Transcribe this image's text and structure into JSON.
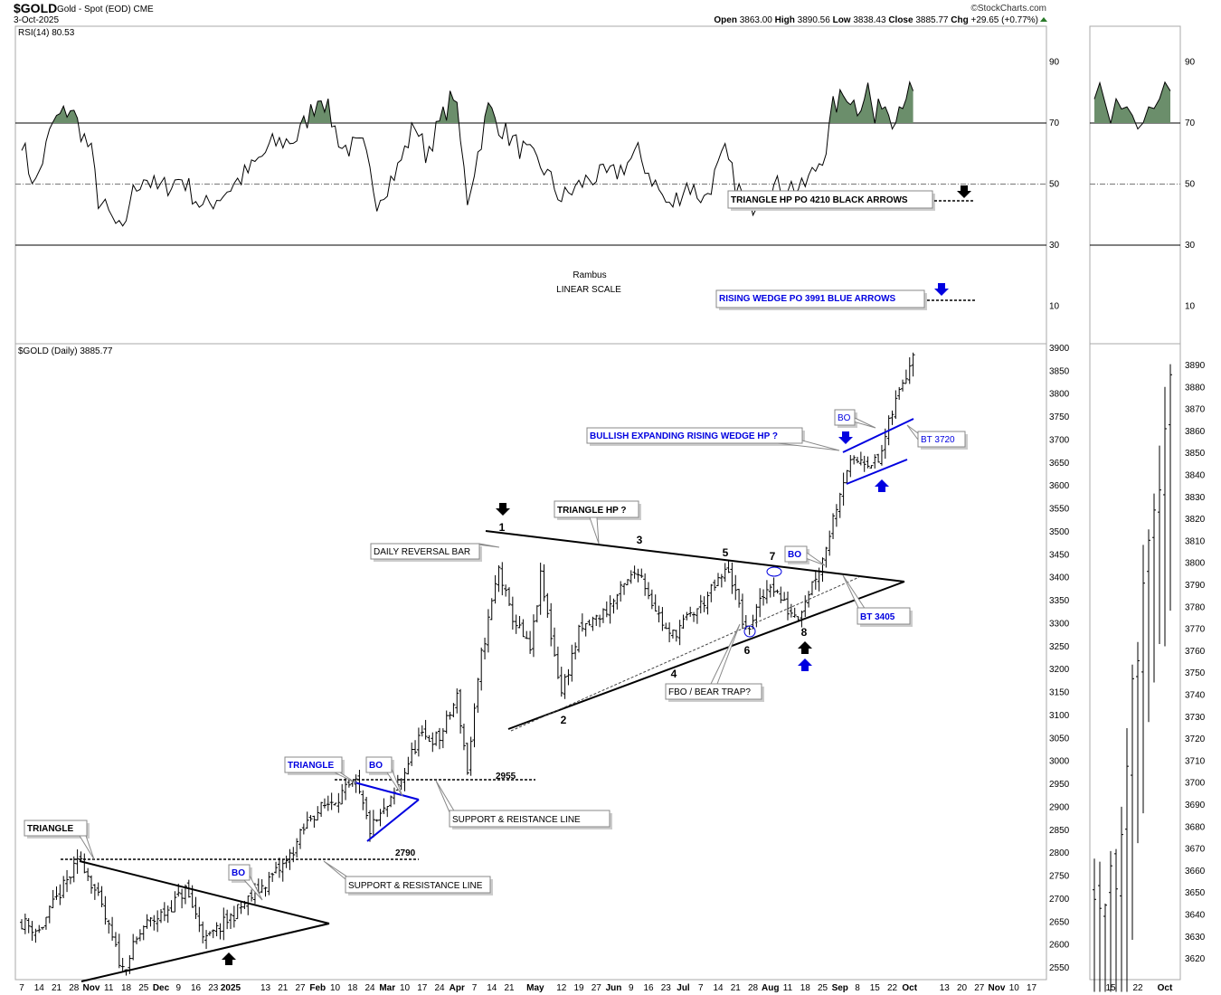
{
  "header": {
    "symbol": "$GOLD",
    "description": "Gold - Spot (EOD) CME",
    "date": "3-Oct-2025",
    "watermark": "©StockCharts.com",
    "open_label": "Open",
    "open": "3863.00",
    "high_label": "High",
    "high": "3890.56",
    "low_label": "Low",
    "low": "3838.43",
    "close_label": "Close",
    "close": "3885.77",
    "chg_label": "Chg",
    "chg": "+29.65 (+0.77%)"
  },
  "rsi_panel": {
    "legend": "RSI(14) 80.53",
    "fill_color": "#6b8e6b"
  },
  "price_panel": {
    "legend": "$GOLD (Daily) 3885.77"
  },
  "chart_data": {
    "type": "ohlc-bar",
    "title": "$GOLD Gold - Spot (EOD) CME",
    "x_unit": "trading days since 7-Oct-2024",
    "price_key_points": [
      [
        0,
        2650
      ],
      [
        5,
        2630
      ],
      [
        10,
        2700
      ],
      [
        17,
        2790
      ],
      [
        22,
        2700
      ],
      [
        29,
        2545
      ],
      [
        35,
        2640
      ],
      [
        41,
        2670
      ],
      [
        47,
        2720
      ],
      [
        53,
        2610
      ],
      [
        60,
        2660
      ],
      [
        68,
        2720
      ],
      [
        76,
        2780
      ],
      [
        83,
        2880
      ],
      [
        90,
        2920
      ],
      [
        96,
        2950
      ],
      [
        100,
        2850
      ],
      [
        106,
        2910
      ],
      [
        114,
        3050
      ],
      [
        120,
        3050
      ],
      [
        125,
        3140
      ],
      [
        128,
        2980
      ],
      [
        132,
        3230
      ],
      [
        137,
        3420
      ],
      [
        140,
        3330
      ],
      [
        146,
        3240
      ],
      [
        149,
        3400
      ],
      [
        155,
        3150
      ],
      [
        160,
        3280
      ],
      [
        168,
        3330
      ],
      [
        177,
        3420
      ],
      [
        181,
        3350
      ],
      [
        186,
        3270
      ],
      [
        195,
        3340
      ],
      [
        203,
        3420
      ],
      [
        208,
        3280
      ],
      [
        215,
        3390
      ],
      [
        220,
        3330
      ],
      [
        223,
        3320
      ],
      [
        230,
        3440
      ],
      [
        235,
        3590
      ],
      [
        237,
        3640
      ],
      [
        241,
        3660
      ],
      [
        246,
        3650
      ],
      [
        250,
        3760
      ],
      [
        253,
        3830
      ],
      [
        256,
        3885
      ]
    ],
    "rsi_key_points": [
      [
        0,
        65
      ],
      [
        2,
        55
      ],
      [
        4,
        50
      ],
      [
        9,
        70
      ],
      [
        14,
        75
      ],
      [
        20,
        60
      ],
      [
        22,
        45
      ],
      [
        25,
        40
      ],
      [
        29,
        33
      ],
      [
        31,
        45
      ],
      [
        35,
        53
      ],
      [
        39,
        48
      ],
      [
        46,
        52
      ],
      [
        52,
        42
      ],
      [
        59,
        48
      ],
      [
        66,
        55
      ],
      [
        72,
        63
      ],
      [
        79,
        65
      ],
      [
        86,
        80
      ],
      [
        92,
        62
      ],
      [
        98,
        62
      ],
      [
        102,
        45
      ],
      [
        108,
        55
      ],
      [
        113,
        70
      ],
      [
        116,
        60
      ],
      [
        121,
        72
      ],
      [
        124,
        80
      ],
      [
        125,
        73
      ],
      [
        128,
        45
      ],
      [
        134,
        75
      ],
      [
        138,
        68
      ],
      [
        142,
        63
      ],
      [
        150,
        55
      ],
      [
        155,
        45
      ],
      [
        163,
        52
      ],
      [
        170,
        53
      ],
      [
        177,
        60
      ],
      [
        183,
        48
      ],
      [
        186,
        42
      ],
      [
        191,
        50
      ],
      [
        196,
        45
      ],
      [
        202,
        60
      ],
      [
        205,
        50
      ],
      [
        209,
        42
      ],
      [
        213,
        48
      ],
      [
        220,
        50
      ],
      [
        224,
        48
      ],
      [
        228,
        55
      ],
      [
        231,
        62
      ],
      [
        233,
        75
      ],
      [
        237,
        80
      ],
      [
        240,
        75
      ],
      [
        243,
        82
      ],
      [
        245,
        70
      ],
      [
        247,
        78
      ],
      [
        250,
        72
      ],
      [
        254,
        80
      ],
      [
        256,
        80
      ]
    ],
    "price_axis": {
      "ticks": [
        3900,
        3850,
        3800,
        3750,
        3700,
        3650,
        3600,
        3550,
        3500,
        3450,
        3400,
        3350,
        3300,
        3250,
        3200,
        3150,
        3100,
        3050,
        3000,
        2950,
        2900,
        2850,
        2800,
        2750,
        2700,
        2650,
        2600,
        2550
      ],
      "range": [
        2520,
        3920
      ]
    },
    "rsi_axis": {
      "ticks": [
        90,
        70,
        50,
        30,
        10
      ],
      "range": [
        0,
        100
      ],
      "overbought": 70,
      "oversold": 30,
      "mid": 50
    },
    "zoom_axis": {
      "ticks": [
        3890,
        3880,
        3870,
        3860,
        3850,
        3840,
        3830,
        3820,
        3810,
        3800,
        3790,
        3780,
        3770,
        3760,
        3750,
        3740,
        3730,
        3720,
        3710,
        3700,
        3690,
        3680,
        3670,
        3660,
        3650,
        3640,
        3630,
        3620
      ]
    },
    "x_labels": [
      {
        "w": 0,
        "t": "7"
      },
      {
        "w": 1,
        "t": "14"
      },
      {
        "w": 2,
        "t": "21"
      },
      {
        "w": 3,
        "t": "28"
      },
      {
        "w": 4,
        "t": "Nov",
        "b": true
      },
      {
        "w": 5,
        "t": "11"
      },
      {
        "w": 6,
        "t": "18"
      },
      {
        "w": 7,
        "t": "25"
      },
      {
        "w": 8,
        "t": "Dec",
        "b": true
      },
      {
        "w": 9,
        "t": "9"
      },
      {
        "w": 10,
        "t": "16"
      },
      {
        "w": 11,
        "t": "23"
      },
      {
        "w": 12,
        "t": "2025",
        "b": true
      },
      {
        "w": 14,
        "t": "13"
      },
      {
        "w": 15,
        "t": "21"
      },
      {
        "w": 16,
        "t": "27"
      },
      {
        "w": 17,
        "t": "Feb",
        "b": true
      },
      {
        "w": 18,
        "t": "10"
      },
      {
        "w": 19,
        "t": "18"
      },
      {
        "w": 20,
        "t": "24"
      },
      {
        "w": 21,
        "t": "Mar",
        "b": true
      },
      {
        "w": 22,
        "t": "10"
      },
      {
        "w": 23,
        "t": "17"
      },
      {
        "w": 24,
        "t": "24"
      },
      {
        "w": 25,
        "t": "Apr",
        "b": true
      },
      {
        "w": 26,
        "t": "7"
      },
      {
        "w": 27,
        "t": "14"
      },
      {
        "w": 28,
        "t": "21"
      },
      {
        "w": 29.5,
        "t": "May",
        "b": true
      },
      {
        "w": 31,
        "t": "12"
      },
      {
        "w": 32,
        "t": "19"
      },
      {
        "w": 33,
        "t": "27"
      },
      {
        "w": 34,
        "t": "Jun",
        "b": true
      },
      {
        "w": 35,
        "t": "9"
      },
      {
        "w": 36,
        "t": "16"
      },
      {
        "w": 37,
        "t": "23"
      },
      {
        "w": 38,
        "t": "Jul",
        "b": true
      },
      {
        "w": 39,
        "t": "7"
      },
      {
        "w": 40,
        "t": "14"
      },
      {
        "w": 41,
        "t": "21"
      },
      {
        "w": 42,
        "t": "28"
      },
      {
        "w": 43,
        "t": "Aug",
        "b": true
      },
      {
        "w": 44,
        "t": "11"
      },
      {
        "w": 45,
        "t": "18"
      },
      {
        "w": 46,
        "t": "25"
      },
      {
        "w": 47,
        "t": "Sep",
        "b": true
      },
      {
        "w": 48,
        "t": "8"
      },
      {
        "w": 49,
        "t": "15"
      },
      {
        "w": 50,
        "t": "22"
      },
      {
        "w": 51,
        "t": "Oct",
        "b": true
      },
      {
        "w": 53,
        "t": "13"
      },
      {
        "w": 54,
        "t": "20"
      },
      {
        "w": 55,
        "t": "27"
      },
      {
        "w": 56,
        "t": "Nov",
        "b": true
      },
      {
        "w": 57,
        "t": "10"
      },
      {
        "w": 58,
        "t": "17"
      }
    ],
    "zoom_x_labels": [
      {
        "d": 245,
        "t": "15"
      },
      {
        "d": 250,
        "t": "22"
      },
      {
        "d": 255,
        "t": "Oct",
        "b": true
      }
    ]
  },
  "annotations": {
    "rsi_triangle_po": "TRIANGLE HP PO 4210 BLACK ARROWS",
    "rsi_wedge_po": "RISING WEDGE PO 3991 BLUE ARROWS",
    "author": "Rambus",
    "scale": "LINEAR SCALE",
    "daily_reversal": "DAILY REVERSAL BAR",
    "triangle_hp": "TRIANGLE HP ?",
    "wedge_hp": "BULLISH EXPANDING RISING WEDGE HP ?",
    "bo_wedge": "BO",
    "bt_3720": "BT 3720",
    "bo_triangle": "BO",
    "bt_3405": "BT 3405",
    "fbo": "FBO / BEAR TRAP?",
    "triangle_small": "TRIANGLE",
    "bo_small": "BO",
    "sr_line_1": "SUPPORT & REISTANCE LINE",
    "level_2955": "2955",
    "level_2790": "2790",
    "triangle_big": "TRIANGLE",
    "bo_big": "BO",
    "sr_line_2": "SUPPORT & RESISTANCE LINE",
    "points": [
      "1",
      "2",
      "3",
      "4",
      "5",
      "6",
      "7",
      "8"
    ]
  }
}
